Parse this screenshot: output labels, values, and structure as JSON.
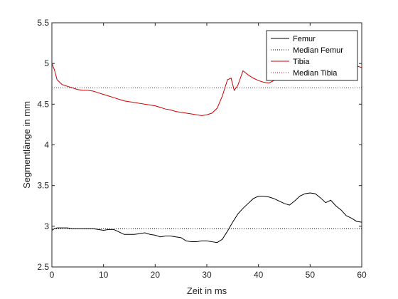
{
  "chart_data": {
    "type": "line",
    "title": "",
    "xlabel": "Zeit in ms",
    "ylabel": "Segmentlänge in mm",
    "xlim": [
      0,
      60
    ],
    "ylim": [
      2.5,
      5.5
    ],
    "xticks": [
      0,
      10,
      20,
      30,
      40,
      50,
      60
    ],
    "yticks": [
      2.5,
      3,
      3.5,
      4,
      4.5,
      5,
      5.5
    ],
    "xtick_labels": [
      "0",
      "10",
      "20",
      "30",
      "40",
      "50",
      "60"
    ],
    "ytick_labels": [
      "2.5",
      "3",
      "3.5",
      "4",
      "4.5",
      "5",
      "5.5"
    ],
    "grid": false,
    "legend_position": "top-right",
    "series": [
      {
        "name": "Femur",
        "style": "solid",
        "color": "#000000",
        "x": [
          0,
          0.5,
          1,
          2,
          3,
          4,
          5,
          6,
          7,
          8,
          9,
          10,
          11,
          12,
          13,
          14,
          15,
          16,
          17,
          18,
          19,
          20,
          21,
          22,
          23,
          24,
          25,
          26,
          27,
          28,
          29,
          30,
          31,
          32,
          33,
          34,
          35,
          36,
          37,
          38,
          39,
          40,
          41,
          42,
          43,
          44,
          45,
          46,
          47,
          48,
          49,
          50,
          51,
          52,
          53,
          54,
          55,
          56,
          57,
          58,
          59,
          60
        ],
        "y": [
          2.95,
          2.97,
          2.98,
          2.98,
          2.98,
          2.97,
          2.97,
          2.97,
          2.97,
          2.97,
          2.96,
          2.95,
          2.96,
          2.96,
          2.93,
          2.9,
          2.9,
          2.9,
          2.91,
          2.92,
          2.9,
          2.89,
          2.87,
          2.88,
          2.88,
          2.87,
          2.86,
          2.82,
          2.81,
          2.81,
          2.82,
          2.82,
          2.81,
          2.8,
          2.84,
          2.94,
          3.05,
          3.15,
          3.22,
          3.28,
          3.34,
          3.37,
          3.37,
          3.36,
          3.34,
          3.31,
          3.28,
          3.26,
          3.31,
          3.37,
          3.4,
          3.41,
          3.4,
          3.35,
          3.29,
          3.32,
          3.25,
          3.2,
          3.13,
          3.1,
          3.06,
          3.05
        ]
      },
      {
        "name": "Median Femur",
        "style": "dotted",
        "color": "#000000",
        "x": [
          0,
          60
        ],
        "y": [
          2.97,
          2.97
        ]
      },
      {
        "name": "Tibia",
        "style": "solid",
        "color": "#cc0000",
        "x": [
          0,
          0.5,
          1,
          2,
          3,
          4,
          5,
          6,
          7,
          8,
          9,
          10,
          11,
          12,
          13,
          14,
          15,
          16,
          17,
          18,
          19,
          20,
          21,
          22,
          23,
          24,
          25,
          26,
          27,
          28,
          29,
          30,
          31,
          32,
          33,
          34,
          34.7,
          35.3,
          36,
          37,
          38,
          39,
          40,
          41,
          42,
          43,
          44,
          45,
          46,
          47,
          48,
          49,
          50,
          51,
          52,
          53,
          54,
          55,
          56,
          57,
          58,
          59,
          60
        ],
        "y": [
          5.0,
          4.92,
          4.8,
          4.74,
          4.72,
          4.7,
          4.68,
          4.67,
          4.67,
          4.66,
          4.64,
          4.62,
          4.6,
          4.58,
          4.56,
          4.54,
          4.53,
          4.52,
          4.51,
          4.5,
          4.49,
          4.48,
          4.46,
          4.44,
          4.43,
          4.41,
          4.4,
          4.39,
          4.38,
          4.37,
          4.36,
          4.37,
          4.39,
          4.45,
          4.6,
          4.8,
          4.82,
          4.67,
          4.73,
          4.91,
          4.86,
          4.82,
          4.79,
          4.77,
          4.76,
          4.79,
          4.85,
          4.9,
          4.93,
          4.96,
          4.98,
          4.99,
          5.0,
          4.98,
          4.96,
          4.97,
          4.99,
          4.97,
          4.96,
          4.97,
          4.98,
          4.97,
          4.95
        ]
      },
      {
        "name": "Median Tibia",
        "style": "dotted",
        "color": "#cc0000",
        "x": [
          0,
          60
        ],
        "y": [
          4.7,
          4.7
        ]
      }
    ]
  }
}
